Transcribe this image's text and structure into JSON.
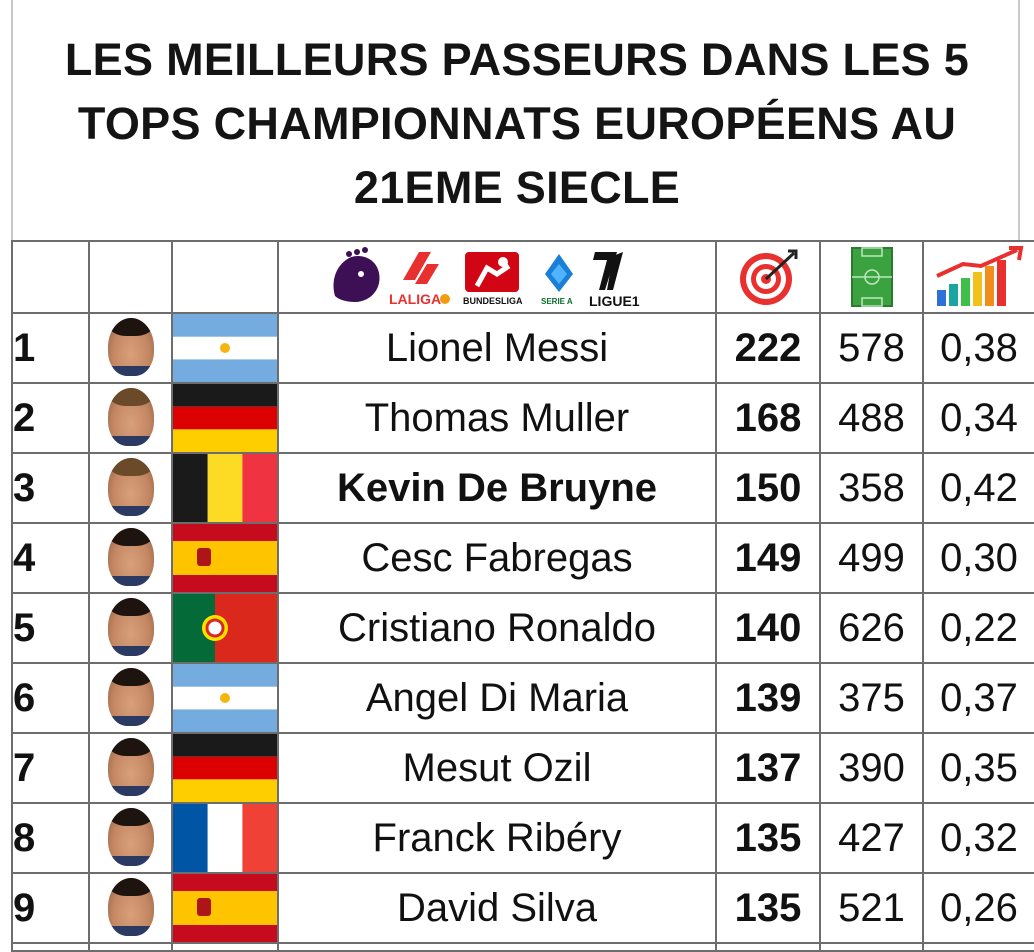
{
  "title_lines": [
    "LES MEILLEURS PASSEURS DANS LES 5",
    "TOPS CHAMPIONNATS EUROPÉENS AU",
    "21EME SIECLE"
  ],
  "header": {
    "league_logos": [
      "premier-league-logo",
      "laliga-logo",
      "bundesliga-logo",
      "serie-a-logo",
      "ligue1-logo"
    ],
    "laliga_text": "LALIGA",
    "bundesliga_text": "BUNDESLIGA",
    "seriea_text": "SERIE A",
    "ligue1_text": "LIGUE1",
    "assists_icon": "target-icon",
    "matches_icon": "football-pitch-icon",
    "ratio_icon": "bar-chart-icon"
  },
  "colors": {
    "grid_border": "#6d6d6d",
    "target_red": "#e8302f",
    "pitch_green": "#3aa23e"
  },
  "players": [
    {
      "rank": "1",
      "name": "Lionel Messi",
      "flag": "argentina",
      "assists": "222",
      "matches": "578",
      "ratio": "0,38"
    },
    {
      "rank": "2",
      "name": "Thomas Muller",
      "flag": "germany",
      "assists": "168",
      "matches": "488",
      "ratio": "0,34"
    },
    {
      "rank": "3",
      "name": "Kevin De Bruyne",
      "flag": "belgium",
      "assists": "150",
      "matches": "358",
      "ratio": "0,42"
    },
    {
      "rank": "4",
      "name": "Cesc Fabregas",
      "flag": "spain",
      "assists": "149",
      "matches": "499",
      "ratio": "0,30"
    },
    {
      "rank": "5",
      "name": "Cristiano Ronaldo",
      "flag": "portugal",
      "assists": "140",
      "matches": "626",
      "ratio": "0,22"
    },
    {
      "rank": "6",
      "name": "Angel Di Maria",
      "flag": "argentina",
      "assists": "139",
      "matches": "375",
      "ratio": "0,37"
    },
    {
      "rank": "7",
      "name": "Mesut Ozil",
      "flag": "germany",
      "assists": "137",
      "matches": "390",
      "ratio": "0,35"
    },
    {
      "rank": "8",
      "name": "Franck Ribéry",
      "flag": "france",
      "assists": "135",
      "matches": "427",
      "ratio": "0,32"
    },
    {
      "rank": "9",
      "name": "David Silva",
      "flag": "spain",
      "assists": "135",
      "matches": "521",
      "ratio": "0,26"
    }
  ]
}
